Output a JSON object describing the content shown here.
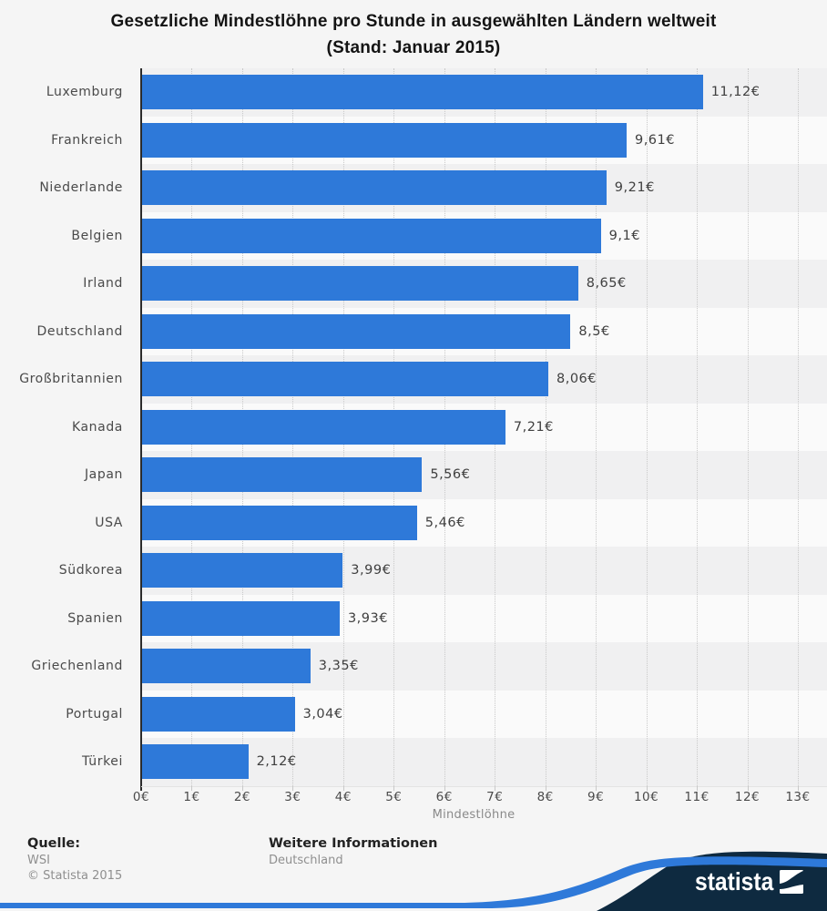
{
  "title": {
    "line1": "Gesetzliche Mindestlöhne pro Stunde in ausgewählten Ländern weltweit",
    "line2": "(Stand: Januar 2015)"
  },
  "chart_data": {
    "type": "bar",
    "orientation": "horizontal",
    "title": "Gesetzliche Mindestlöhne pro Stunde in ausgewählten Ländern weltweit (Stand: Januar 2015)",
    "categories": [
      "Luxemburg",
      "Frankreich",
      "Niederlande",
      "Belgien",
      "Irland",
      "Deutschland",
      "Großbritannien",
      "Kanada",
      "Japan",
      "USA",
      "Südkorea",
      "Spanien",
      "Griechenland",
      "Portugal",
      "Türkei"
    ],
    "values": [
      11.12,
      9.61,
      9.21,
      9.1,
      8.65,
      8.5,
      8.06,
      7.21,
      5.56,
      5.46,
      3.99,
      3.93,
      3.35,
      3.04,
      2.12
    ],
    "value_labels": [
      "11,12€",
      "9,61€",
      "9,21€",
      "9,1€",
      "8,65€",
      "8,5€",
      "8,06€",
      "7,21€",
      "5,56€",
      "5,46€",
      "3,99€",
      "3,93€",
      "3,35€",
      "3,04€",
      "2,12€"
    ],
    "xlabel": "Mindestlöhne",
    "ylabel": "",
    "x_ticks": [
      "0€",
      "1€",
      "2€",
      "3€",
      "4€",
      "5€",
      "6€",
      "7€",
      "8€",
      "9€",
      "10€",
      "11€",
      "12€",
      "13€"
    ],
    "xlim": [
      0,
      13
    ],
    "grid": "dotted-vertical",
    "legend": "none",
    "bar_color": "#2e79d9",
    "band_colors": [
      "#f0f0f1",
      "#fafafa"
    ]
  },
  "footer": {
    "source_heading": "Quelle:",
    "source": "WSI",
    "copyright": "© Statista 2015",
    "info_heading": "Weitere Informationen",
    "info": "Deutschland"
  },
  "branding": {
    "logo_text": "statista",
    "navy": "#0e2a40",
    "blue": "#2e79d9"
  }
}
